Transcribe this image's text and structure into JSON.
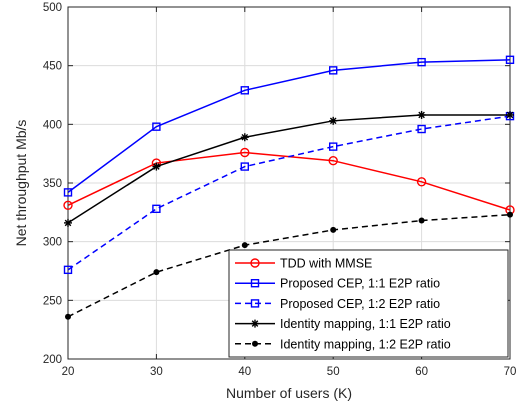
{
  "chart_data": {
    "type": "line",
    "title": "",
    "xlabel": "Number of users (K)",
    "ylabel": "Net throughput Mb/s",
    "x": [
      20,
      30,
      40,
      50,
      60,
      70
    ],
    "xlim": [
      20,
      70
    ],
    "ylim": [
      200,
      500
    ],
    "xticks": [
      "20",
      "30",
      "40",
      "50",
      "60",
      "70"
    ],
    "yticks": [
      "200",
      "250",
      "300",
      "350",
      "400",
      "450",
      "500"
    ],
    "grid": true,
    "legend_position": "bottom-right",
    "series": [
      {
        "name": "TDD with MMSE",
        "values": [
          331,
          367,
          376,
          369,
          351,
          327
        ],
        "color": "#ff0000",
        "dash": "solid",
        "marker": "circle"
      },
      {
        "name": "Proposed CEP, 1:1 E2P ratio",
        "values": [
          342,
          398,
          429,
          446,
          453,
          455
        ],
        "color": "#0000ff",
        "dash": "solid",
        "marker": "square"
      },
      {
        "name": "Proposed CEP, 1:2 E2P ratio",
        "values": [
          276,
          328,
          364,
          381,
          396,
          407
        ],
        "color": "#0000ff",
        "dash": "dashed",
        "marker": "square"
      },
      {
        "name": "Identity mapping, 1:1 E2P ratio",
        "values": [
          316,
          364,
          389,
          403,
          408,
          408
        ],
        "color": "#000000",
        "dash": "solid",
        "marker": "asterisk"
      },
      {
        "name": "Identity mapping, 1:2 E2P ratio",
        "values": [
          236,
          274,
          297,
          310,
          318,
          323
        ],
        "color": "#000000",
        "dash": "dashed",
        "marker": "dot"
      }
    ]
  }
}
